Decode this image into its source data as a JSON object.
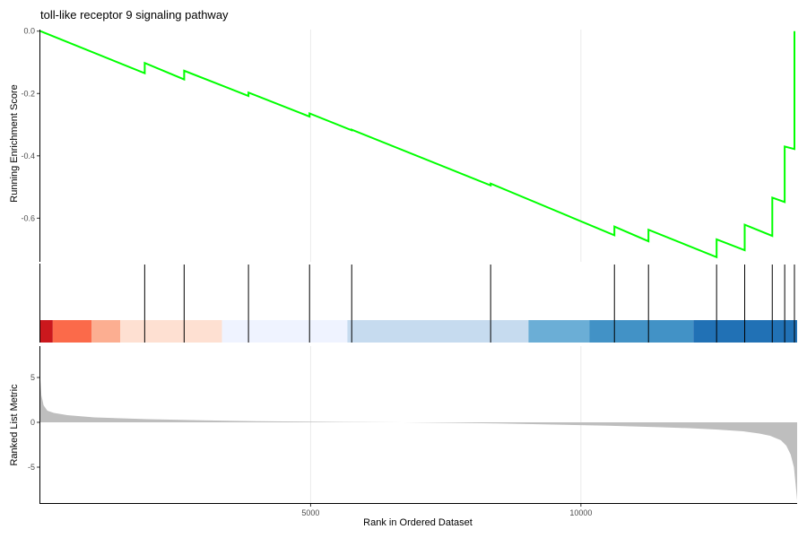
{
  "chart_data": {
    "type": "line",
    "title": "toll-like receptor 9 signaling pathway",
    "xlabel": "Rank in Ordered Dataset",
    "x_ticks": [
      5000,
      10000
    ],
    "xlim": [
      0,
      14000
    ],
    "grid": true,
    "panels": {
      "running_es": {
        "ylabel": "Running Enrichment Score",
        "ylim": [
          -0.74,
          0.005
        ],
        "y_ticks": [
          0.0,
          -0.2,
          -0.4,
          -0.6
        ],
        "y_tick_labels": [
          "0.0",
          "-0.2",
          "-0.4",
          "-0.6"
        ],
        "line_color": "#00ff00",
        "series": [
          {
            "x": [
              0,
              1930,
              1930,
              2660,
              2660,
              3850,
              3850,
              4980,
              4980,
              5760,
              5760,
              8330,
              8330,
              10620,
              10620,
              11250,
              11250,
              12510,
              12510,
              13030,
              13030,
              13540,
              13540,
              13770,
              13770,
              13950,
              13950
            ],
            "y": [
              0.0,
              -0.135,
              -0.102,
              -0.155,
              -0.127,
              -0.208,
              -0.197,
              -0.274,
              -0.264,
              -0.318,
              -0.316,
              -0.495,
              -0.489,
              -0.655,
              -0.627,
              -0.674,
              -0.637,
              -0.725,
              -0.668,
              -0.703,
              -0.621,
              -0.657,
              -0.534,
              -0.548,
              -0.37,
              -0.378,
              0.0
            ]
          }
        ]
      },
      "hits": {
        "x": [
          1930,
          2660,
          3850,
          4980,
          5760,
          8330,
          10620,
          11250,
          12510,
          13030,
          13540,
          13770,
          13950
        ]
      },
      "rank_color_bar": {
        "segments": [
          {
            "start": 0,
            "end": 230,
            "color": "#cb181d"
          },
          {
            "start": 230,
            "end": 950,
            "color": "#fb6a4a"
          },
          {
            "start": 950,
            "end": 1480,
            "color": "#fcae91"
          },
          {
            "start": 1480,
            "end": 3360,
            "color": "#fee0d2"
          },
          {
            "start": 3360,
            "end": 5680,
            "color": "#eff3ff"
          },
          {
            "start": 5680,
            "end": 9030,
            "color": "#c6dbef"
          },
          {
            "start": 9030,
            "end": 10160,
            "color": "#6baed6"
          },
          {
            "start": 10160,
            "end": 12080,
            "color": "#4292c6"
          },
          {
            "start": 12080,
            "end": 14000,
            "color": "#2171b5"
          }
        ]
      },
      "ranked_metric": {
        "ylabel": "Ranked List Metric",
        "ylim": [
          -9.0,
          8.5
        ],
        "y_ticks": [
          5,
          0,
          -5
        ],
        "y_tick_labels": [
          "5",
          "0",
          "-5"
        ],
        "fill_color": "#bebebe",
        "x": [
          0,
          20,
          60,
          130,
          250,
          500,
          1000,
          2000,
          3000,
          4000,
          5000,
          6000,
          6700,
          7500,
          8500,
          9500,
          10500,
          11500,
          12000,
          12500,
          13000,
          13300,
          13500,
          13700,
          13800,
          13880,
          13940,
          13970,
          14000
        ],
        "values": [
          4.7,
          3.0,
          1.9,
          1.3,
          1.05,
          0.8,
          0.55,
          0.35,
          0.22,
          0.13,
          0.07,
          0.02,
          0.0,
          -0.05,
          -0.12,
          -0.25,
          -0.38,
          -0.55,
          -0.65,
          -0.8,
          -1.0,
          -1.25,
          -1.5,
          -2.0,
          -2.6,
          -3.6,
          -5.0,
          -6.8,
          -8.7
        ]
      }
    }
  }
}
